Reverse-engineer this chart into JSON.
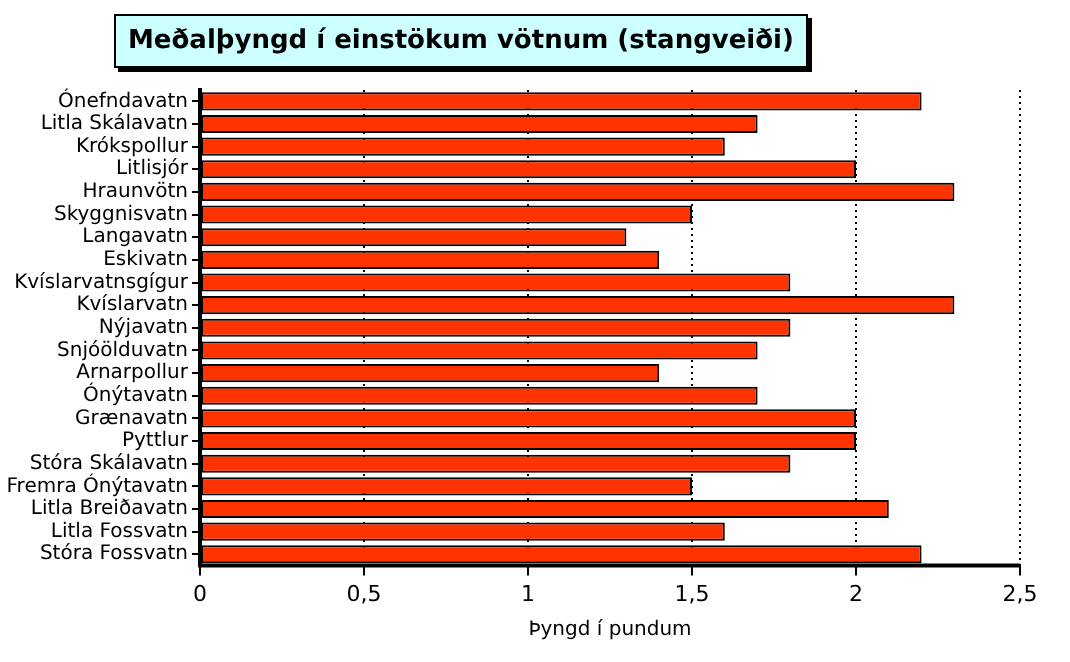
{
  "chart_data": {
    "type": "bar",
    "orientation": "horizontal",
    "title": "Meðalþyngd í einstökum vötnum (stangveiði)",
    "xlabel": "Þyngd í pundum",
    "categories": [
      "Ónefndavatn",
      "Litla Skálavatn",
      "Krókspollur",
      "Litlisjór",
      "Hraunvötn",
      "Skyggnisvatn",
      "Langavatn",
      "Eskivatn",
      "Kvíslarvatnsgígur",
      "Kvíslarvatn",
      "Nýjavatn",
      "Snjóölduvatn",
      "Arnarpollur",
      "Ónýtavatn",
      "Grænavatn",
      "Pyttlur",
      "Stóra Skálavatn",
      "Fremra Ónýtavatn",
      "Litla Breiðavatn",
      "Litla Fossvatn",
      "Stóra Fossvatn"
    ],
    "values": [
      2.2,
      1.7,
      1.6,
      2.0,
      2.3,
      1.5,
      1.3,
      1.4,
      1.8,
      2.3,
      1.8,
      1.7,
      1.4,
      1.7,
      2.0,
      2.0,
      1.8,
      1.5,
      2.1,
      1.6,
      2.2
    ],
    "color": "#ff3300",
    "xlim": [
      0,
      2.5
    ],
    "xticks": [
      0,
      {
        "value": 0.5,
        "label": "0,5"
      },
      1,
      {
        "value": 1.5,
        "label": "1,5"
      },
      2,
      {
        "value": 2.5,
        "label": "2,5"
      }
    ],
    "grid": "x"
  }
}
